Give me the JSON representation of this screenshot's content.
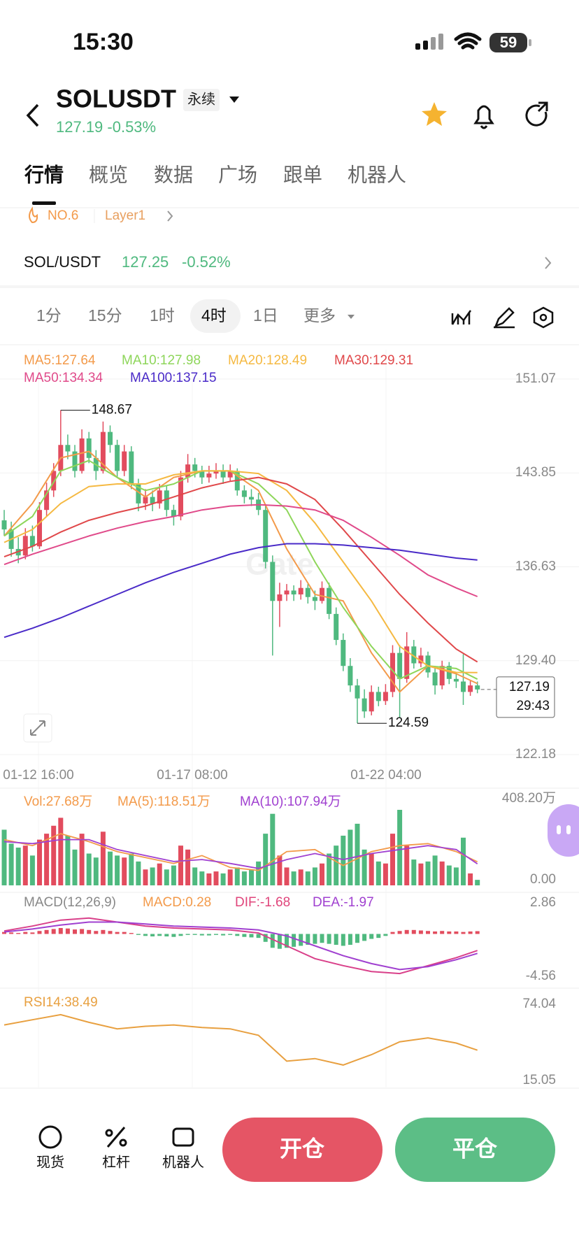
{
  "status_bar": {
    "time": "15:30",
    "battery": "59"
  },
  "header": {
    "symbol": "SOLUSDT",
    "badge": "永续",
    "price_change": "127.19 -0.53%"
  },
  "tabs": [
    "行情",
    "概览",
    "数据",
    "广场",
    "跟单",
    "机器人"
  ],
  "tags": [
    "NO.6",
    "Layer1"
  ],
  "spot": {
    "pair": "SOL/USDT",
    "price": "127.25",
    "change": "-0.52%"
  },
  "intervals": [
    "1分",
    "15分",
    "1时",
    "4时",
    "1日",
    "更多"
  ],
  "selected_interval": 3,
  "watermark": "Gate",
  "bottom_nav": [
    "现货",
    "杠杆",
    "机器人"
  ],
  "buttons": [
    "开仓",
    "平仓"
  ],
  "chart_data": {
    "type": "candlestick",
    "ylim": [
      122.18,
      151.07
    ],
    "yticks": [
      151.07,
      143.85,
      136.63,
      {
        "value": 129.4,
        "label": "129.40"
      },
      122.18
    ],
    "x_labels": [
      "01-12 16:00",
      "01-17 08:00",
      "01-22 04:00"
    ],
    "up_color": "#e24c5e",
    "down_color": "#4fb97f",
    "high_label": 148.67,
    "low_label": 124.59,
    "last_price": 127.19,
    "countdown": "29:43",
    "candles": [
      [
        140.2,
        141.0,
        139.0,
        139.5
      ],
      [
        139.5,
        140.1,
        137.4,
        138.0
      ],
      [
        138.0,
        138.9,
        136.9,
        137.5
      ],
      [
        137.5,
        139.6,
        137.2,
        139.0
      ],
      [
        139.0,
        139.8,
        137.8,
        138.2
      ],
      [
        138.2,
        141.6,
        138.0,
        141.0
      ],
      [
        141.0,
        143.1,
        140.5,
        142.5
      ],
      [
        142.5,
        144.6,
        142.0,
        144.0
      ],
      [
        144.0,
        148.67,
        143.6,
        146.0
      ],
      [
        146.0,
        146.8,
        144.9,
        145.5
      ],
      [
        145.5,
        146.0,
        143.5,
        144.0
      ],
      [
        144.0,
        147.2,
        143.8,
        146.5
      ],
      [
        146.5,
        147.0,
        144.6,
        145.0
      ],
      [
        145.0,
        145.6,
        143.3,
        144.0
      ],
      [
        144.0,
        147.8,
        143.8,
        147.0
      ],
      [
        147.0,
        147.5,
        145.4,
        146.0
      ],
      [
        146.0,
        146.4,
        143.5,
        144.0
      ],
      [
        144.0,
        146.0,
        143.6,
        145.5
      ],
      [
        145.5,
        145.9,
        142.6,
        143.0
      ],
      [
        143.0,
        143.4,
        140.9,
        141.5
      ],
      [
        141.5,
        142.6,
        141.0,
        142.0
      ],
      [
        142.0,
        142.5,
        140.9,
        141.5
      ],
      [
        141.5,
        143.0,
        141.1,
        142.5
      ],
      [
        142.5,
        142.9,
        140.5,
        141.0
      ],
      [
        141.0,
        141.4,
        139.8,
        140.5
      ],
      [
        140.5,
        144.0,
        140.2,
        143.5
      ],
      [
        143.5,
        145.3,
        143.1,
        144.5
      ],
      [
        144.5,
        145.0,
        143.5,
        144.0
      ],
      [
        144.0,
        144.4,
        143.0,
        143.5
      ],
      [
        143.5,
        144.4,
        143.1,
        143.8
      ],
      [
        143.8,
        144.6,
        143.4,
        144.0
      ],
      [
        144.0,
        144.5,
        143.0,
        143.5
      ],
      [
        143.5,
        144.5,
        143.2,
        144.0
      ],
      [
        144.0,
        144.2,
        142.1,
        142.5
      ],
      [
        142.5,
        142.9,
        141.5,
        142.0
      ],
      [
        142.0,
        142.6,
        141.3,
        141.8
      ],
      [
        141.8,
        142.3,
        140.6,
        141.0
      ],
      [
        141.0,
        141.4,
        136.5,
        137.0
      ],
      [
        137.0,
        137.5,
        129.8,
        134.0
      ],
      [
        134.0,
        135.4,
        132.0,
        134.5
      ],
      [
        134.5,
        135.3,
        134.0,
        134.8
      ],
      [
        134.8,
        135.2,
        134.0,
        134.5
      ],
      [
        134.5,
        135.6,
        134.1,
        135.0
      ],
      [
        135.0,
        135.3,
        133.8,
        134.3
      ],
      [
        134.3,
        134.8,
        133.3,
        134.0
      ],
      [
        134.0,
        135.5,
        133.8,
        135.0
      ],
      [
        135.0,
        135.4,
        132.6,
        133.0
      ],
      [
        133.0,
        133.5,
        130.6,
        131.0
      ],
      [
        131.0,
        131.5,
        128.6,
        129.0
      ],
      [
        129.0,
        129.6,
        127.0,
        127.5
      ],
      [
        127.5,
        128.0,
        124.59,
        126.5
      ],
      [
        126.5,
        127.2,
        125.0,
        125.5
      ],
      [
        125.5,
        127.5,
        125.2,
        127.0
      ],
      [
        127.0,
        127.4,
        125.9,
        126.3
      ],
      [
        126.3,
        127.6,
        126.0,
        127.0
      ],
      [
        127.0,
        130.6,
        126.6,
        130.0
      ],
      [
        130.0,
        130.6,
        125.0,
        128.0
      ],
      [
        128.0,
        131.6,
        127.7,
        130.5
      ],
      [
        130.5,
        131.0,
        128.8,
        129.2
      ],
      [
        129.2,
        130.4,
        128.9,
        129.8
      ],
      [
        129.8,
        130.1,
        128.1,
        128.5
      ],
      [
        128.5,
        129.0,
        126.8,
        127.5
      ],
      [
        127.5,
        129.4,
        127.2,
        129.0
      ],
      [
        129.0,
        129.3,
        127.6,
        128.0
      ],
      [
        128.0,
        128.5,
        127.3,
        127.8
      ],
      [
        127.8,
        129.9,
        126.0,
        127.0
      ],
      [
        127.0,
        127.9,
        126.7,
        127.5
      ],
      [
        127.5,
        127.8,
        126.9,
        127.19
      ]
    ],
    "ma_x": [
      0,
      4,
      8,
      12,
      16,
      20,
      24,
      28,
      32,
      36,
      40,
      44,
      48,
      52,
      56,
      60,
      64,
      67
    ],
    "ma_series": [
      {
        "name": "MA5",
        "label": "MA5:127.64",
        "color": "#f39a4a",
        "values": [
          139,
          141.5,
          145,
          145.5,
          143.5,
          142,
          143.5,
          144,
          144,
          142.5,
          138,
          134.5,
          134,
          130,
          127,
          129,
          128.4,
          127.64
        ]
      },
      {
        "name": "MA10",
        "label": "MA10:127.98",
        "color": "#8ed65a",
        "values": [
          139,
          140.5,
          144,
          144.8,
          143.5,
          142.5,
          143,
          144,
          144,
          143,
          141,
          137,
          133.5,
          130.5,
          128,
          129,
          128.8,
          127.98
        ]
      },
      {
        "name": "MA20",
        "label": "MA20:128.49",
        "color": "#f5b942",
        "values": [
          138.5,
          139.5,
          141.5,
          142.8,
          143,
          143,
          143.7,
          144,
          144,
          143.8,
          142.5,
          140,
          137,
          134,
          130.5,
          129,
          128.5,
          128.49
        ]
      },
      {
        "name": "MA30",
        "label": "MA30:129.31",
        "color": "#e0484a",
        "values": [
          137.4,
          138.2,
          139.3,
          140.2,
          140.8,
          141.3,
          142,
          142.7,
          143.2,
          143.5,
          143,
          141.8,
          139.5,
          137,
          134.5,
          132.3,
          130.3,
          129.31
        ]
      },
      {
        "name": "MA50",
        "label": "MA50:134.34",
        "color": "#e04a8a",
        "values": [
          136.8,
          137.6,
          138.3,
          139,
          139.6,
          140.1,
          140.5,
          141,
          141.3,
          141.4,
          141.3,
          141,
          140.2,
          138.9,
          137.5,
          136,
          135,
          134.34
        ]
      },
      {
        "name": "MA100",
        "label": "MA100:137.15",
        "color": "#4a2bc8",
        "values": [
          131.2,
          131.9,
          132.7,
          133.6,
          134.5,
          135.4,
          136.2,
          136.9,
          137.6,
          138.1,
          138.4,
          138.4,
          138.3,
          138.1,
          137.9,
          137.6,
          137.3,
          137.15
        ]
      }
    ],
    "volume": {
      "legend": [
        {
          "text": "Vol:27.68万",
          "color": "#f39a4a"
        },
        {
          "text": "MA(5):118.51万",
          "color": "#f39a4a"
        },
        {
          "text": "MA(10):107.94万",
          "color": "#a040d0"
        }
      ],
      "ylim": [
        0,
        408.2
      ],
      "yticks": [
        {
          "value": 408.2,
          "label": "408.20万"
        },
        {
          "value": 0,
          "label": "0.00"
        }
      ],
      "values": [
        280,
        210,
        190,
        200,
        150,
        230,
        260,
        300,
        340,
        250,
        180,
        260,
        160,
        140,
        270,
        170,
        150,
        140,
        160,
        120,
        80,
        90,
        110,
        80,
        100,
        200,
        180,
        90,
        70,
        60,
        70,
        60,
        80,
        90,
        70,
        80,
        120,
        260,
        360,
        150,
        90,
        70,
        80,
        70,
        90,
        110,
        160,
        200,
        250,
        280,
        310,
        180,
        160,
        120,
        110,
        260,
        380,
        200,
        130,
        110,
        120,
        150,
        120,
        100,
        90,
        240,
        60,
        27.68
      ],
      "ma5": {
        "color": "#f39a4a",
        "values": [
          230,
          200,
          260,
          220,
          170,
          140,
          110,
          150,
          90,
          75,
          170,
          180,
          100,
          170,
          200,
          210,
          170,
          118.51
        ]
      },
      "ma10": {
        "color": "#a040d0",
        "values": [
          220,
          210,
          230,
          230,
          180,
          150,
          120,
          130,
          110,
          85,
          130,
          160,
          130,
          160,
          180,
          200,
          180,
          107.94
        ]
      }
    },
    "macd": {
      "legend": [
        {
          "text": "MACD(12,26,9)",
          "color": "#888888"
        },
        {
          "text": "MACD:0.28",
          "color": "#f39a4a"
        },
        {
          "text": "DIF:-1.68",
          "color": "#e0457b"
        },
        {
          "text": "DEA:-1.97",
          "color": "#a040d0"
        }
      ],
      "ylim": [
        -4.56,
        2.86
      ],
      "yticks": [
        2.86,
        -4.56
      ],
      "hist": [
        0.2,
        0.15,
        0.1,
        0.2,
        0.15,
        0.3,
        0.4,
        0.5,
        0.6,
        0.55,
        0.45,
        0.5,
        0.4,
        0.3,
        0.4,
        0.3,
        0.2,
        0.2,
        0.1,
        -0.1,
        -0.2,
        -0.25,
        -0.2,
        -0.25,
        -0.3,
        -0.2,
        -0.1,
        -0.1,
        -0.15,
        -0.15,
        -0.1,
        -0.15,
        -0.1,
        -0.2,
        -0.3,
        -0.35,
        -0.4,
        -0.8,
        -1.4,
        -1.5,
        -1.4,
        -1.3,
        -1.2,
        -1.1,
        -1.0,
        -0.9,
        -1.0,
        -1.1,
        -1.2,
        -1.1,
        -0.9,
        -0.7,
        -0.5,
        -0.4,
        -0.2,
        0.2,
        0.3,
        0.4,
        0.4,
        0.35,
        0.3,
        0.25,
        0.3,
        0.25,
        0.25,
        0.2,
        0.25,
        0.28
      ],
      "dif": {
        "color": "#d9408a",
        "values": [
          0.3,
          0.8,
          1.4,
          1.6,
          1.2,
          0.8,
          0.6,
          0.5,
          0.4,
          0.1,
          -1.2,
          -2.5,
          -3.2,
          -3.8,
          -4.0,
          -3.2,
          -2.4,
          -1.68
        ]
      },
      "dea": {
        "color": "#a040d0",
        "values": [
          0.2,
          0.5,
          0.9,
          1.2,
          1.2,
          1.0,
          0.8,
          0.7,
          0.6,
          0.4,
          -0.2,
          -1.2,
          -2.2,
          -3.0,
          -3.6,
          -3.3,
          -2.6,
          -1.97
        ]
      }
    },
    "rsi": {
      "legend": "RSI14:38.49",
      "color": "#e8a040",
      "ylim": [
        15.05,
        74.04
      ],
      "yticks": [
        74.04,
        15.05
      ],
      "values": [
        58,
        62,
        66,
        60,
        55,
        57,
        58,
        56,
        55,
        50,
        30,
        32,
        27,
        35,
        45,
        48,
        44,
        38.49
      ]
    }
  }
}
